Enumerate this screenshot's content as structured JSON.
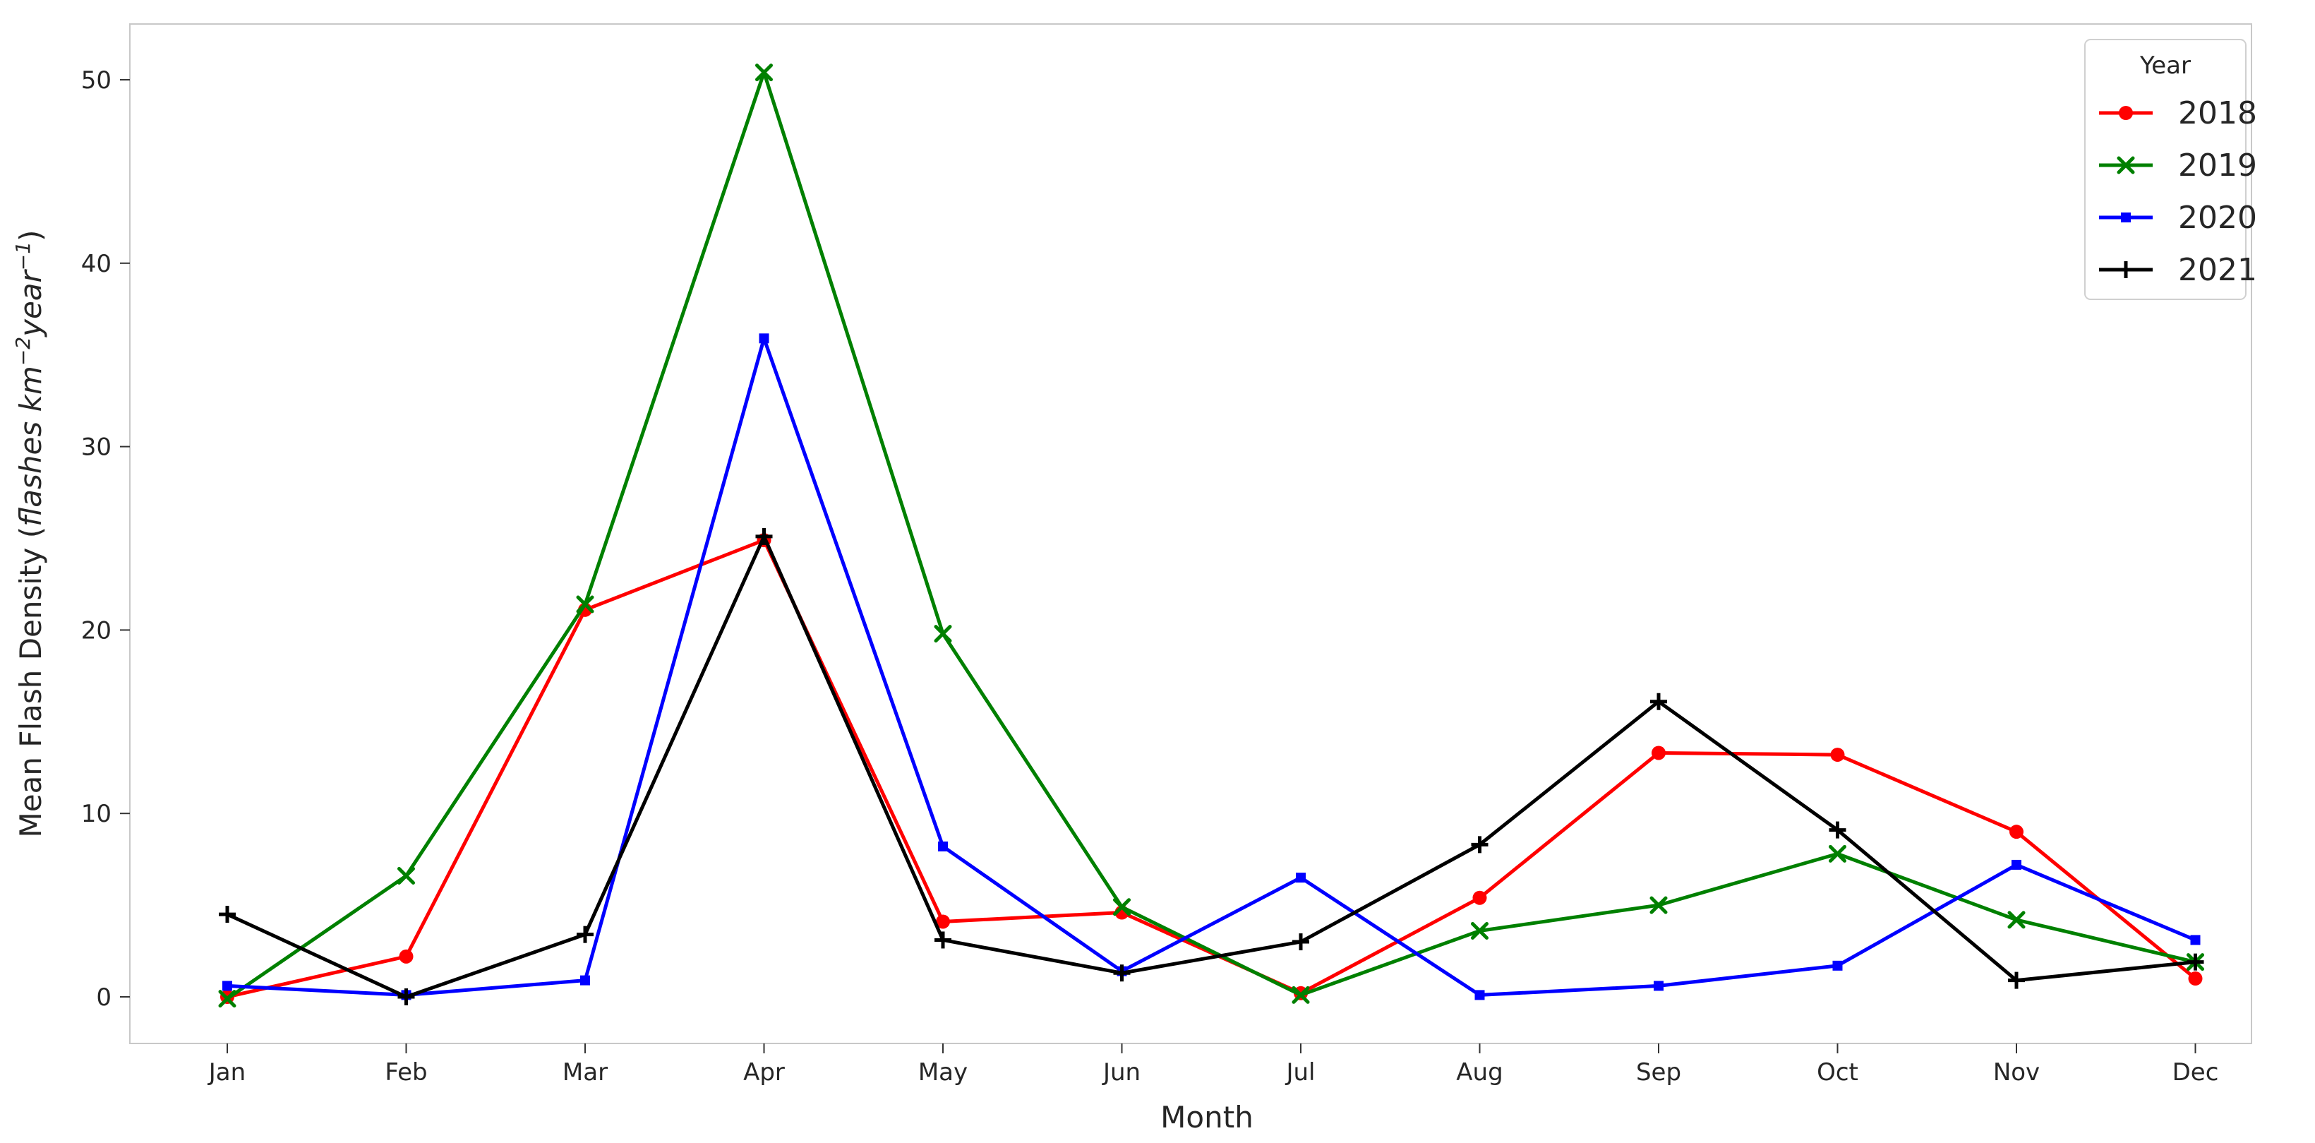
{
  "chart_data": {
    "type": "line",
    "xlabel": "Month",
    "ylabel_main": "Mean Flash Density (",
    "ylabel_italic_a": "flashes km",
    "ylabel_sup_a": "−2",
    "ylabel_italic_b": "year",
    "ylabel_sup_b": "−1",
    "ylabel_close": ")",
    "categories": [
      "Jan",
      "Feb",
      "Mar",
      "Apr",
      "May",
      "Jun",
      "Jul",
      "Aug",
      "Sep",
      "Oct",
      "Nov",
      "Dec"
    ],
    "ylim": [
      -2.5,
      53.1
    ],
    "yticks": [
      0,
      10,
      20,
      30,
      40,
      50
    ],
    "grid": false,
    "legend": {
      "title": "Year",
      "placement": "top-right"
    },
    "series": [
      {
        "name": "2018",
        "color": "#ff0000",
        "marker": "circle",
        "values": [
          0.0,
          2.2,
          21.1,
          24.9,
          4.1,
          4.6,
          0.2,
          5.4,
          13.3,
          13.2,
          9.0,
          1.0
        ]
      },
      {
        "name": "2019",
        "color": "#008000",
        "marker": "x",
        "values": [
          -0.1,
          6.6,
          21.4,
          50.4,
          19.8,
          4.9,
          0.1,
          3.6,
          5.0,
          7.8,
          4.2,
          1.9
        ]
      },
      {
        "name": "2020",
        "color": "#0000ff",
        "marker": "square",
        "values": [
          0.6,
          0.1,
          0.9,
          35.9,
          8.2,
          1.4,
          6.5,
          0.1,
          0.6,
          1.7,
          7.2,
          3.1
        ]
      },
      {
        "name": "2021",
        "color": "#000000",
        "marker": "plus",
        "values": [
          4.5,
          0.0,
          3.4,
          25.1,
          3.1,
          1.3,
          3.0,
          8.3,
          16.1,
          9.1,
          0.9,
          1.9
        ]
      }
    ]
  }
}
